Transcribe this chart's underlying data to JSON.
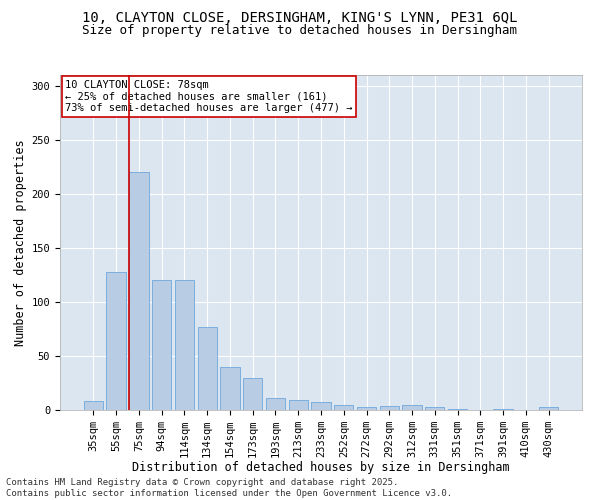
{
  "title_line1": "10, CLAYTON CLOSE, DERSINGHAM, KING'S LYNN, PE31 6QL",
  "title_line2": "Size of property relative to detached houses in Dersingham",
  "xlabel": "Distribution of detached houses by size in Dersingham",
  "ylabel": "Number of detached properties",
  "categories": [
    "35sqm",
    "55sqm",
    "75sqm",
    "94sqm",
    "114sqm",
    "134sqm",
    "154sqm",
    "173sqm",
    "193sqm",
    "213sqm",
    "233sqm",
    "252sqm",
    "272sqm",
    "292sqm",
    "312sqm",
    "331sqm",
    "351sqm",
    "371sqm",
    "391sqm",
    "410sqm",
    "430sqm"
  ],
  "values": [
    8,
    128,
    220,
    120,
    120,
    77,
    40,
    30,
    11,
    9,
    7,
    5,
    3,
    4,
    5,
    3,
    1,
    0,
    1,
    0,
    3
  ],
  "bar_color": "#b8cce4",
  "bar_edge_color": "#6fa8dc",
  "vline_color": "#cc0000",
  "vline_pos": 1.575,
  "annotation_box_text": "10 CLAYTON CLOSE: 78sqm\n← 25% of detached houses are smaller (161)\n73% of semi-detached houses are larger (477) →",
  "ylim": [
    0,
    310
  ],
  "yticks": [
    0,
    50,
    100,
    150,
    200,
    250,
    300
  ],
  "background_color": "#dce6f1",
  "footer_text": "Contains HM Land Registry data © Crown copyright and database right 2025.\nContains public sector information licensed under the Open Government Licence v3.0.",
  "title_fontsize": 10,
  "subtitle_fontsize": 9,
  "axis_label_fontsize": 8.5,
  "tick_fontsize": 7.5,
  "annotation_fontsize": 7.5,
  "footer_fontsize": 6.5
}
